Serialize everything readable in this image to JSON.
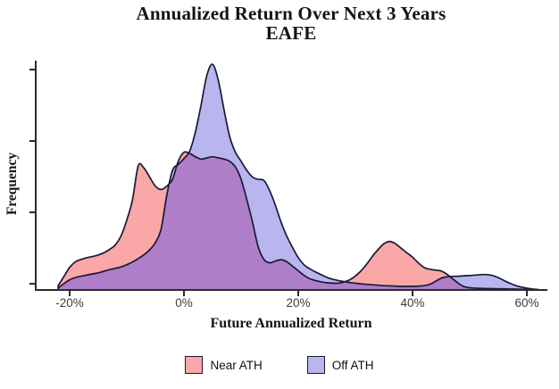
{
  "title": {
    "line1": "Annualized Return Over Next 3 Years",
    "line2": "EAFE"
  },
  "axes": {
    "x_label": "Future Annualized Return",
    "y_label": "Frequency",
    "x_tick_labels": [
      "-20%",
      "0%",
      "20%",
      "40%",
      "60%"
    ],
    "y_tick_labels": [],
    "y_tick_count": 4
  },
  "legend": {
    "items": [
      {
        "label": "Near ATH",
        "color": "#f9a7a7"
      },
      {
        "label": "Off ATH",
        "color": "#b9b5ee"
      }
    ]
  },
  "colors": {
    "near_ath_fill": "#f9a7a7",
    "off_ath_fill": "#b9b5ee",
    "overlap_fill": "#af7ec9",
    "outline": "#191934",
    "axis": "#2b2b2b",
    "tick_text": "#3d3d3d",
    "title_text": "#141414",
    "background": "#ffffff"
  },
  "chart_data": {
    "type": "area",
    "subtype": "overlapping-density",
    "title": "Annualized Return Over Next 3 Years",
    "subtitle": "EAFE",
    "xlabel": "Future Annualized Return",
    "ylabel": "Frequency",
    "x_unit": "percent",
    "x_ticks": [
      -20,
      0,
      20,
      40,
      60
    ],
    "xlim": [
      -23,
      63
    ],
    "ylim": [
      0,
      1.05
    ],
    "y_note": "frequency axis has 4 unlabeled tick marks; values normalized so Off ATH peak = 1.0",
    "grid": false,
    "legend_position": "bottom",
    "x": [
      -22,
      -21,
      -20,
      -19,
      -18,
      -17,
      -16,
      -15,
      -14,
      -13,
      -12,
      -11,
      -10,
      -9,
      -8,
      -7,
      -6,
      -5,
      -4,
      -3,
      -2,
      -1,
      0,
      1,
      2,
      3,
      4,
      5,
      6,
      7,
      8,
      9,
      10,
      11,
      12,
      13,
      14,
      15,
      16,
      17,
      18,
      19,
      20,
      21,
      22,
      23,
      24,
      25,
      26,
      27,
      28,
      29,
      30,
      31,
      32,
      33,
      34,
      35,
      36,
      37,
      38,
      39,
      40,
      41,
      42,
      43,
      44,
      45,
      46,
      47,
      48,
      49,
      50,
      51,
      52,
      53,
      54,
      55,
      56,
      57,
      58,
      59,
      60,
      61,
      62
    ],
    "series": [
      {
        "name": "Near ATH",
        "fill": "#f9a7a7",
        "peaks": [
          {
            "x": -8,
            "y": 0.55
          },
          {
            "x": 0,
            "y": 0.61
          },
          {
            "x": 36,
            "y": 0.215
          },
          {
            "x": 44,
            "y": 0.088
          }
        ],
        "values": [
          0.02,
          0.06,
          0.1,
          0.125,
          0.135,
          0.143,
          0.148,
          0.155,
          0.165,
          0.18,
          0.2,
          0.24,
          0.31,
          0.4,
          0.55,
          0.54,
          0.5,
          0.46,
          0.445,
          0.46,
          0.49,
          0.57,
          0.61,
          0.605,
          0.59,
          0.58,
          0.585,
          0.59,
          0.585,
          0.58,
          0.57,
          0.545,
          0.49,
          0.4,
          0.3,
          0.19,
          0.135,
          0.12,
          0.128,
          0.134,
          0.125,
          0.105,
          0.085,
          0.065,
          0.05,
          0.042,
          0.036,
          0.032,
          0.03,
          0.03,
          0.035,
          0.045,
          0.062,
          0.085,
          0.115,
          0.15,
          0.18,
          0.205,
          0.215,
          0.205,
          0.185,
          0.165,
          0.145,
          0.12,
          0.1,
          0.092,
          0.088,
          0.084,
          0.07,
          0.05,
          0.03,
          0.015,
          0.01,
          0.008,
          0.007,
          0.006,
          0.006,
          0.005,
          0.005,
          0.004,
          0.004,
          0.003,
          0.003,
          0.002,
          0.001
        ]
      },
      {
        "name": "Off ATH",
        "fill": "#b9b5ee",
        "peaks": [
          {
            "x": 5,
            "y": 1.0
          },
          {
            "x": 13,
            "y": 0.49
          },
          {
            "x": 52,
            "y": 0.068
          }
        ],
        "values": [
          0.01,
          0.028,
          0.045,
          0.055,
          0.061,
          0.066,
          0.071,
          0.076,
          0.083,
          0.09,
          0.096,
          0.102,
          0.112,
          0.124,
          0.139,
          0.156,
          0.178,
          0.21,
          0.27,
          0.42,
          0.53,
          0.556,
          0.582,
          0.615,
          0.7,
          0.82,
          0.95,
          1.0,
          0.93,
          0.8,
          0.68,
          0.61,
          0.57,
          0.53,
          0.5,
          0.49,
          0.485,
          0.44,
          0.375,
          0.3,
          0.238,
          0.188,
          0.143,
          0.112,
          0.094,
          0.08,
          0.068,
          0.056,
          0.048,
          0.042,
          0.037,
          0.033,
          0.03,
          0.027,
          0.025,
          0.023,
          0.021,
          0.019,
          0.018,
          0.017,
          0.016,
          0.016,
          0.016,
          0.017,
          0.019,
          0.025,
          0.038,
          0.052,
          0.058,
          0.06,
          0.061,
          0.063,
          0.064,
          0.066,
          0.068,
          0.068,
          0.064,
          0.055,
          0.042,
          0.03,
          0.02,
          0.013,
          0.008,
          0.004,
          0.002
        ]
      }
    ]
  }
}
